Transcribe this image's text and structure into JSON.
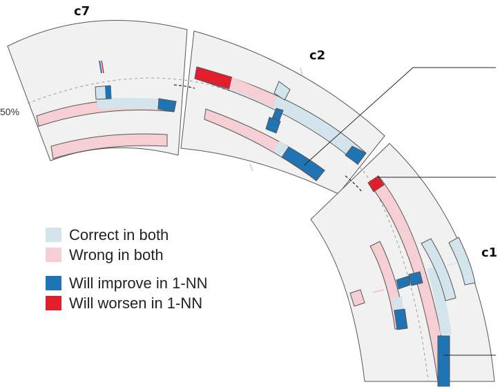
{
  "segments": {
    "c7": "c7",
    "c2": "c2",
    "c1": "c1"
  },
  "threshold_label": "50%",
  "colors": {
    "correct_both": "#d3e4ec",
    "wrong_both": "#f5cfd3",
    "improve": "#1f74b4",
    "worsen": "#e31e2c",
    "segment_bg": "#f1f1f1",
    "segment_border": "#555555"
  },
  "legend": {
    "correct_both": "Correct in both",
    "wrong_both": "Wrong in both",
    "improve": "Will improve in 1-NN",
    "worsen": "Will worsen in 1-NN"
  }
}
